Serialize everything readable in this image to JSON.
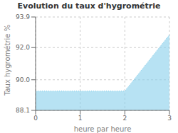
{
  "chart_data": {
    "type": "area",
    "title": "Evolution du taux d'hygrométrie",
    "xlabel": "heure par heure",
    "ylabel": "Taux hygrométrie %",
    "x": [
      0,
      2,
      3
    ],
    "values": [
      89.3,
      89.3,
      92.8
    ],
    "xlim": [
      0,
      3
    ],
    "xticks": [
      0,
      1,
      2,
      3
    ],
    "ylim": [
      88.1,
      93.9
    ],
    "yticks": [
      88.1,
      {
        "value": 90,
        "label": "90.0"
      },
      {
        "value": 92,
        "label": "92.0"
      },
      93.9
    ],
    "color": "#87CEEB",
    "line_style": "dotted",
    "grid": true
  }
}
